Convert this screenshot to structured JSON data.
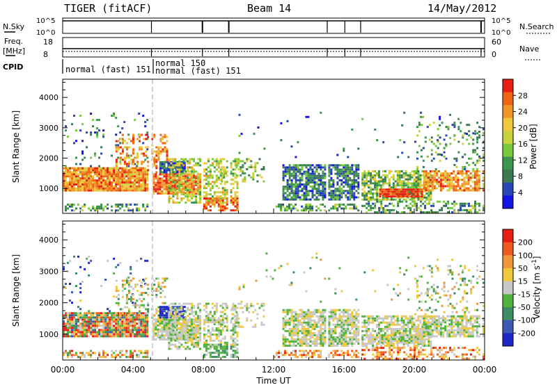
{
  "header": {
    "title": "TIGER (fitACF)",
    "beam": "Beam 14",
    "date": "14/May/2012"
  },
  "panels": {
    "nsky": {
      "label": "N.Sky",
      "tick_top": "10^5",
      "tick_bottom": "10^0",
      "right_label": "N.Search",
      "right_tick_top": "10^5",
      "right_tick_bottom": "10^0"
    },
    "freq": {
      "label_line1": "Freq.",
      "label_line2": "[MHz]",
      "tick_top": "18",
      "tick_bottom": "8",
      "right_label": "Nave",
      "right_tick_top": "60",
      "right_tick_bottom": "0"
    },
    "cpid": {
      "label": "CPID",
      "modes": [
        "normal (fast) 151",
        "normal 150",
        "normal (fast) 151"
      ]
    }
  },
  "chart_data": [
    {
      "type": "heatmap",
      "name": "power",
      "ylabel": "Slant Range [km]",
      "ylim": [
        180,
        4600
      ],
      "yticks": [
        1000,
        2000,
        3000,
        4000
      ],
      "xlim_hours": [
        0,
        24
      ],
      "colorbar": {
        "label": "Power [dB]",
        "range": [
          0,
          32
        ],
        "ticks": [
          "4",
          "8",
          "12",
          "16",
          "20",
          "24",
          "28"
        ],
        "colors": [
          "#1414e6",
          "#2846b4",
          "#3c7850",
          "#3c9650",
          "#78c83c",
          "#c8d23c",
          "#f0c83c",
          "#f09628",
          "#f06414",
          "#e61e14"
        ]
      }
    },
    {
      "type": "heatmap",
      "name": "velocity",
      "ylabel": "Slant Range [km]",
      "ylim": [
        180,
        4600
      ],
      "yticks": [
        1000,
        2000,
        3000,
        4000
      ],
      "xlim_hours": [
        0,
        24
      ],
      "xlabel": "Time UT",
      "xtick_labels": [
        "00:00",
        "04:00",
        "08:00",
        "12:00",
        "16:00",
        "20:00",
        "00:00"
      ],
      "colorbar": {
        "label": "Velocity [m s^-1]",
        "ticks": [
          "200",
          "100",
          "50",
          "15",
          "-15",
          "-50",
          "-100",
          "-200"
        ],
        "colors": [
          "#1e28c8",
          "#3c5ab4",
          "#3c8c64",
          "#50b43c",
          "#c8c8c8",
          "#f0c83c",
          "#f0963c",
          "#f05a1e",
          "#e61e14"
        ]
      }
    }
  ]
}
